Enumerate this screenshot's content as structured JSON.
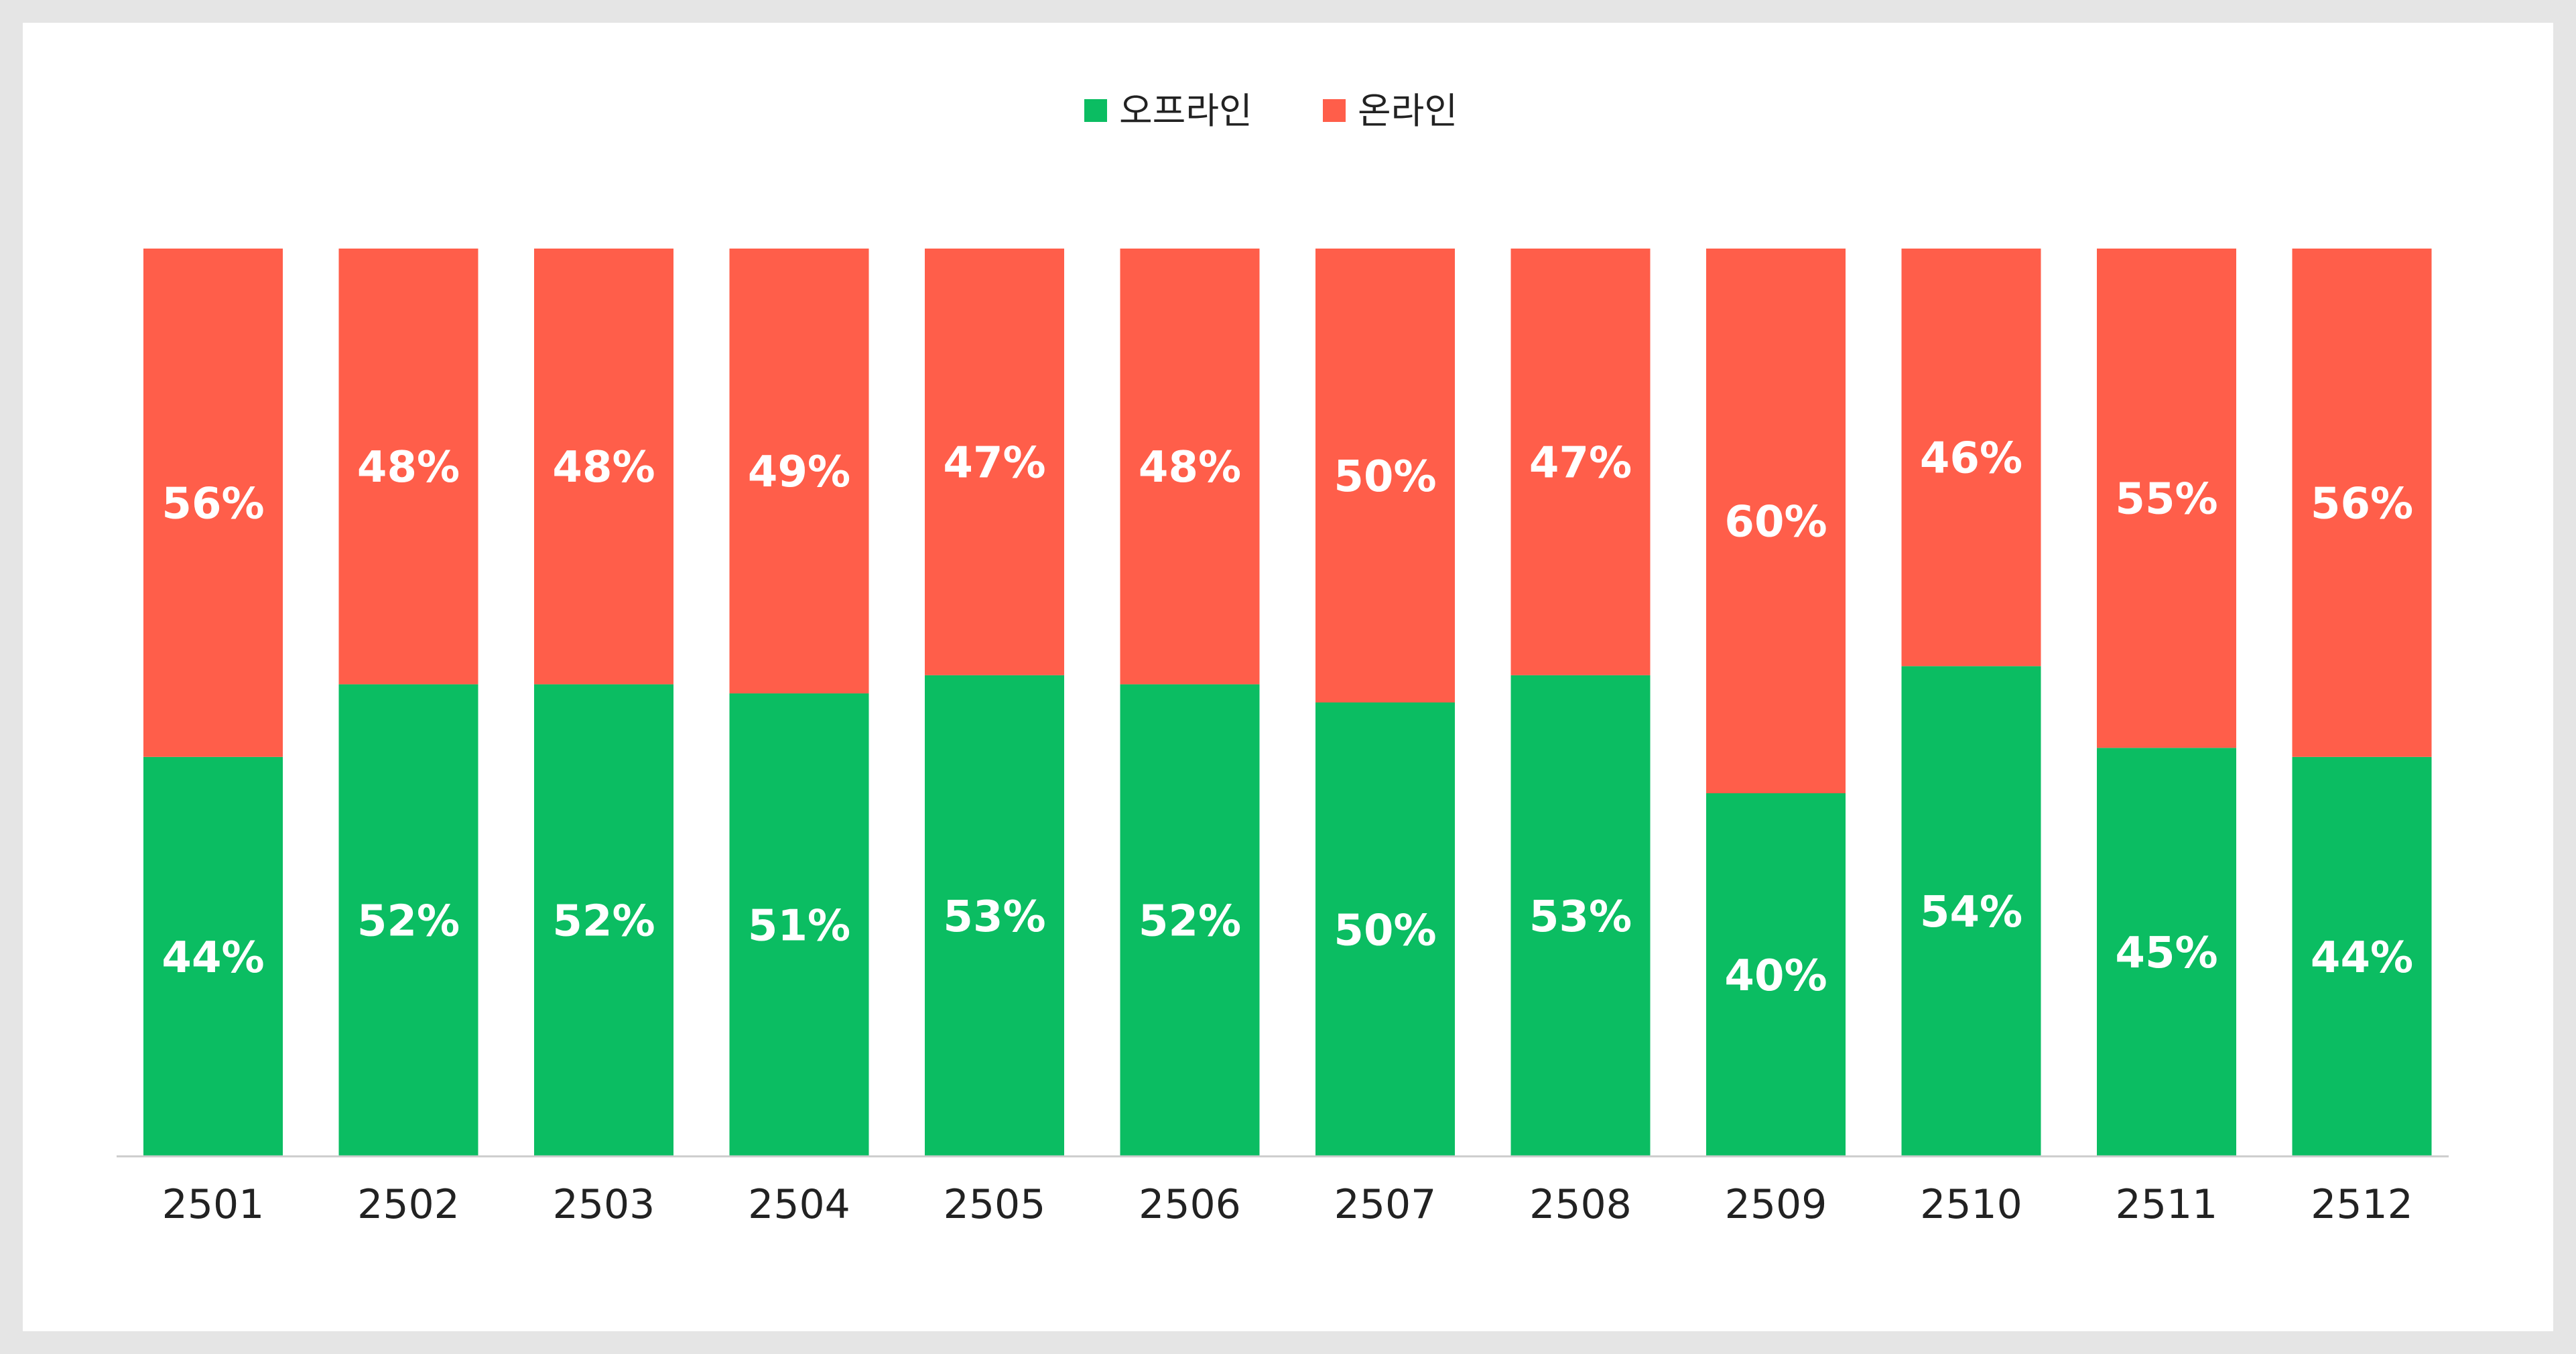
{
  "chart_data": {
    "type": "bar",
    "stacked": true,
    "normalized_percent": true,
    "title": "",
    "xlabel": "",
    "ylabel": "",
    "ylim": [
      0,
      100
    ],
    "grid": false,
    "legend_position": "top-center",
    "categories": [
      "2501",
      "2502",
      "2503",
      "2504",
      "2505",
      "2506",
      "2507",
      "2508",
      "2509",
      "2510",
      "2511",
      "2512"
    ],
    "series": [
      {
        "name": "오프라인",
        "color": "#0bbd62",
        "values": [
          44,
          52,
          52,
          51,
          53,
          52,
          50,
          53,
          40,
          54,
          45,
          44
        ]
      },
      {
        "name": "온라인",
        "color": "#ff5e4a",
        "values": [
          56,
          48,
          48,
          49,
          47,
          48,
          50,
          47,
          60,
          46,
          55,
          56
        ]
      }
    ],
    "label_suffix": "%"
  }
}
